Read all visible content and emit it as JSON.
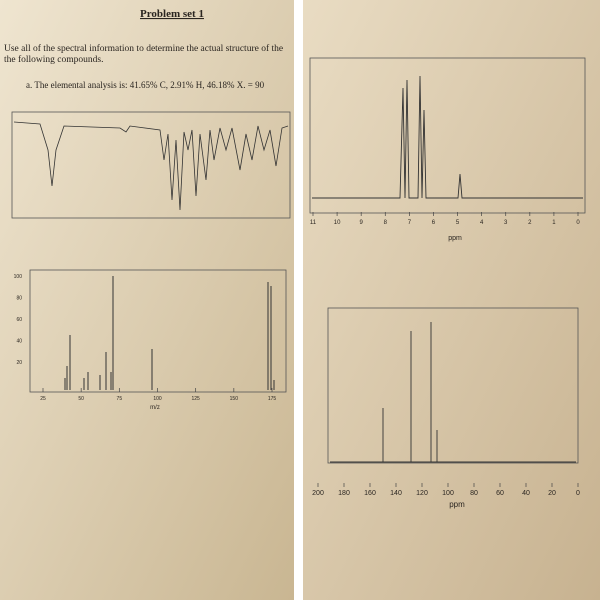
{
  "left_page": {
    "title": "Problem set 1",
    "instructions": [
      "Use all of the spectral information to determine the actual structure of the",
      "the following compounds."
    ],
    "problem": "a.  The elemental analysis is:  41.65% C, 2.91% H, 46.18% X. = 90",
    "mass_spectrum": {
      "xticks": [
        25,
        50,
        75,
        100,
        125,
        150,
        175
      ],
      "yticks": [
        100,
        80,
        60,
        40,
        20
      ],
      "xlabel": "m/z"
    }
  },
  "right_page": {
    "h_nmr": {
      "xticks": [
        11,
        10,
        9,
        8,
        7,
        6,
        5,
        4,
        3,
        2,
        1,
        0
      ],
      "xlabel": "ppm"
    },
    "c_nmr": {
      "xticks": [
        200,
        180,
        160,
        140,
        120,
        100,
        80,
        60,
        40,
        20,
        0
      ],
      "xlabel": "ppm"
    }
  }
}
